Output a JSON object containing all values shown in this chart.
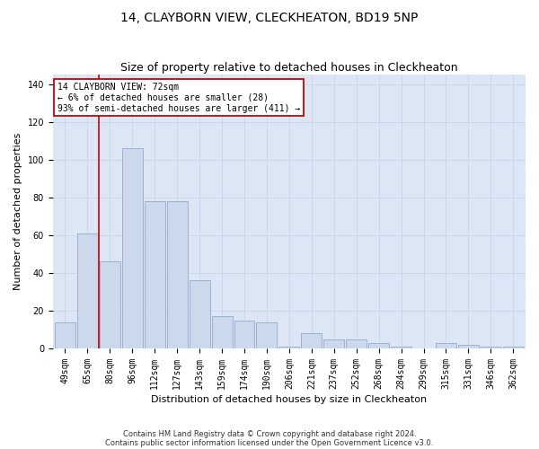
{
  "title": "14, CLAYBORN VIEW, CLECKHEATON, BD19 5NP",
  "subtitle": "Size of property relative to detached houses in Cleckheaton",
  "xlabel": "Distribution of detached houses by size in Cleckheaton",
  "ylabel": "Number of detached properties",
  "categories": [
    "49sqm",
    "65sqm",
    "80sqm",
    "96sqm",
    "112sqm",
    "127sqm",
    "143sqm",
    "159sqm",
    "174sqm",
    "190sqm",
    "206sqm",
    "221sqm",
    "237sqm",
    "252sqm",
    "268sqm",
    "284sqm",
    "299sqm",
    "315sqm",
    "331sqm",
    "346sqm",
    "362sqm"
  ],
  "values": [
    14,
    61,
    46,
    106,
    78,
    78,
    36,
    17,
    15,
    14,
    1,
    8,
    5,
    5,
    3,
    1,
    0,
    3,
    2,
    1,
    1
  ],
  "bar_color": "#ccd9ed",
  "bar_edge_color": "#9ab3d5",
  "vline_color": "#cc0000",
  "annotation_text": "14 CLAYBORN VIEW: 72sqm\n← 6% of detached houses are smaller (28)\n93% of semi-detached houses are larger (411) →",
  "annotation_box_facecolor": "#ffffff",
  "annotation_box_edgecolor": "#cc0000",
  "grid_color": "#c8d4e8",
  "bg_color": "#dce6f5",
  "footer_line1": "Contains HM Land Registry data © Crown copyright and database right 2024.",
  "footer_line2": "Contains public sector information licensed under the Open Government Licence v3.0.",
  "ylim": [
    0,
    145
  ],
  "yticks": [
    0,
    20,
    40,
    60,
    80,
    100,
    120,
    140
  ],
  "title_fontsize": 10,
  "subtitle_fontsize": 9,
  "xlabel_fontsize": 8,
  "ylabel_fontsize": 8,
  "tick_fontsize": 7,
  "annot_fontsize": 7,
  "footer_fontsize": 6
}
